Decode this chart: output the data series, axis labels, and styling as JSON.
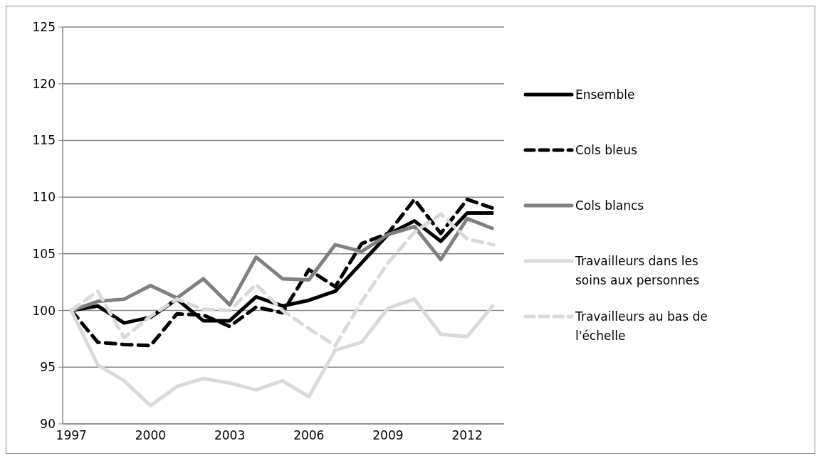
{
  "chart_data": {
    "type": "line",
    "x": [
      1997,
      1998,
      1999,
      2000,
      2001,
      2002,
      2003,
      2004,
      2005,
      2006,
      2007,
      2008,
      2009,
      2010,
      2011,
      2012,
      2013
    ],
    "series": [
      {
        "name": "Ensemble",
        "color": "#000000",
        "line_style": "solid",
        "values": [
          100,
          100.4,
          98.9,
          99.4,
          101.0,
          99.1,
          99.1,
          101.2,
          100.4,
          100.9,
          101.7,
          104.2,
          106.7,
          107.9,
          106.1,
          108.6,
          108.6
        ]
      },
      {
        "name": "Cols bleus",
        "color": "#000000",
        "line_style": "dashed",
        "values": [
          100,
          97.2,
          97.0,
          96.9,
          99.7,
          99.6,
          98.6,
          100.3,
          99.8,
          103.6,
          102.1,
          105.9,
          106.8,
          109.8,
          106.8,
          109.8,
          109.0
        ]
      },
      {
        "name": "Cols blancs",
        "color": "#808080",
        "line_style": "solid",
        "values": [
          100,
          100.8,
          101.0,
          102.2,
          101.1,
          102.8,
          100.5,
          104.7,
          102.8,
          102.7,
          105.8,
          105.2,
          106.7,
          107.4,
          104.5,
          108.1,
          107.2
        ]
      },
      {
        "name": "Travailleurs dans les soins aux personnes",
        "color": "#d9d9d9",
        "line_style": "solid",
        "values": [
          100,
          95.2,
          93.8,
          91.6,
          93.3,
          94.0,
          93.6,
          93.0,
          93.8,
          92.4,
          96.5,
          97.2,
          100.2,
          101.0,
          97.9,
          97.7,
          100.5
        ]
      },
      {
        "name": "Travailleurs au bas de l'échelle",
        "color": "#d9d9d9",
        "line_style": "dashed",
        "values": [
          100,
          101.7,
          97.6,
          99.5,
          101.0,
          100.1,
          100.0,
          102.3,
          100.0,
          98.4,
          96.9,
          100.8,
          104.2,
          106.9,
          108.5,
          106.3,
          105.8
        ]
      }
    ],
    "xlim": [
      1996.67,
      2013.4
    ],
    "xticks": [
      1997,
      2000,
      2003,
      2006,
      2009,
      2012
    ],
    "ylim": [
      90,
      125
    ],
    "yticks": [
      90,
      95,
      100,
      105,
      110,
      115,
      120,
      125
    ],
    "grid": "y",
    "legend": "right"
  }
}
